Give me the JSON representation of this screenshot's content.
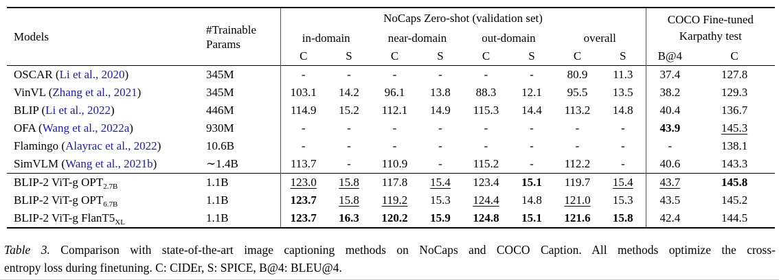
{
  "colors": {
    "link": "#1b1bb3",
    "text": "#000000",
    "rule": "#000000"
  },
  "table": {
    "header": {
      "models": "Models",
      "params_line1": "#Trainable",
      "params_line2": "Params",
      "nocaps_group": "NoCaps Zero-shot (validation set)",
      "coco_line1": "COCO Fine-tuned",
      "coco_line2": "Karpathy test",
      "subgroups": [
        "in-domain",
        "near-domain",
        "out-domain",
        "overall"
      ],
      "metric_c": "C",
      "metric_s": "S",
      "coco_b4": "B@4",
      "coco_c": "C"
    },
    "rows": [
      {
        "model": {
          "pre": "OSCAR (",
          "cite": "Li et al., 2020",
          "post": ")"
        },
        "params": "345M",
        "cells": [
          "-",
          "-",
          "-",
          "-",
          "-",
          "-",
          "80.9",
          "11.3",
          "37.4",
          "127.8"
        ]
      },
      {
        "model": {
          "pre": "VinVL (",
          "cite": "Zhang et al., 2021",
          "post": ")"
        },
        "params": "345M",
        "cells": [
          "103.1",
          "14.2",
          "96.1",
          "13.8",
          "88.3",
          "12.1",
          "95.5",
          "13.5",
          "38.2",
          "129.3"
        ]
      },
      {
        "model": {
          "pre": "BLIP (",
          "cite": "Li et al., 2022",
          "post": ")"
        },
        "params": "446M",
        "cells": [
          "114.9",
          "15.2",
          "112.1",
          "14.9",
          "115.3",
          "14.4",
          "113.2",
          "14.8",
          "40.4",
          "136.7"
        ]
      },
      {
        "model": {
          "pre": "OFA (",
          "cite": "Wang et al., 2022a",
          "post": ")"
        },
        "params": "930M",
        "cells": [
          "-",
          "-",
          "-",
          "-",
          "-",
          "-",
          "-",
          "-",
          {
            "v": "43.9",
            "s": "b"
          },
          {
            "v": "145.3",
            "s": "u"
          }
        ]
      },
      {
        "model": {
          "pre": "Flamingo (",
          "cite": "Alayrac et al., 2022",
          "post": ")"
        },
        "params": "10.6B",
        "cells": [
          "-",
          "-",
          "-",
          "-",
          "-",
          "-",
          "-",
          "-",
          "-",
          "138.1"
        ]
      },
      {
        "model": {
          "pre": "SimVLM (",
          "cite": "Wang et al., 2021b",
          "post": ")"
        },
        "params": "∼1.4B",
        "cells": [
          "113.7",
          "-",
          "110.9",
          "-",
          "115.2",
          "-",
          "112.2",
          "-",
          "40.6",
          "143.3"
        ]
      }
    ],
    "rows_blip2": [
      {
        "model": {
          "pre": "BLIP-2 ViT-g OPT",
          "sub": "2.7B"
        },
        "params": "1.1B",
        "cells": [
          {
            "v": "123.0",
            "s": "u"
          },
          {
            "v": "15.8",
            "s": "u"
          },
          "117.8",
          {
            "v": "15.4",
            "s": "u"
          },
          "123.4",
          {
            "v": "15.1",
            "s": "b"
          },
          "119.7",
          {
            "v": "15.4",
            "s": "u"
          },
          {
            "v": "43.7",
            "s": "u"
          },
          {
            "v": "145.8",
            "s": "b"
          }
        ]
      },
      {
        "model": {
          "pre": "BLIP-2 ViT-g OPT",
          "sub": "6.7B"
        },
        "params": "1.1B",
        "cells": [
          {
            "v": "123.7",
            "s": "b"
          },
          {
            "v": "15.8",
            "s": "u"
          },
          {
            "v": "119.2",
            "s": "u"
          },
          "15.3",
          {
            "v": "124.4",
            "s": "u"
          },
          "14.8",
          {
            "v": "121.0",
            "s": "u"
          },
          "15.3",
          "43.5",
          "145.2"
        ]
      },
      {
        "model": {
          "pre": "BLIP-2 ViT-g FlanT5",
          "sub": "XL"
        },
        "params": "1.1B",
        "cells": [
          {
            "v": "123.7",
            "s": "b"
          },
          {
            "v": "16.3",
            "s": "b"
          },
          {
            "v": "120.2",
            "s": "b"
          },
          {
            "v": "15.9",
            "s": "b"
          },
          {
            "v": "124.8",
            "s": "b"
          },
          {
            "v": "15.1",
            "s": "b"
          },
          {
            "v": "121.6",
            "s": "b"
          },
          {
            "v": "15.8",
            "s": "b"
          },
          "42.4",
          "144.5"
        ]
      }
    ]
  },
  "caption": {
    "label": "Table 3.",
    "line1": "Comparison with state-of-the-art image captioning methods on NoCaps and COCO Caption. All methods optimize the cross-",
    "line2": "entropy loss during finetuning. C: CIDEr, S: SPICE, B@4: BLEU@4."
  }
}
